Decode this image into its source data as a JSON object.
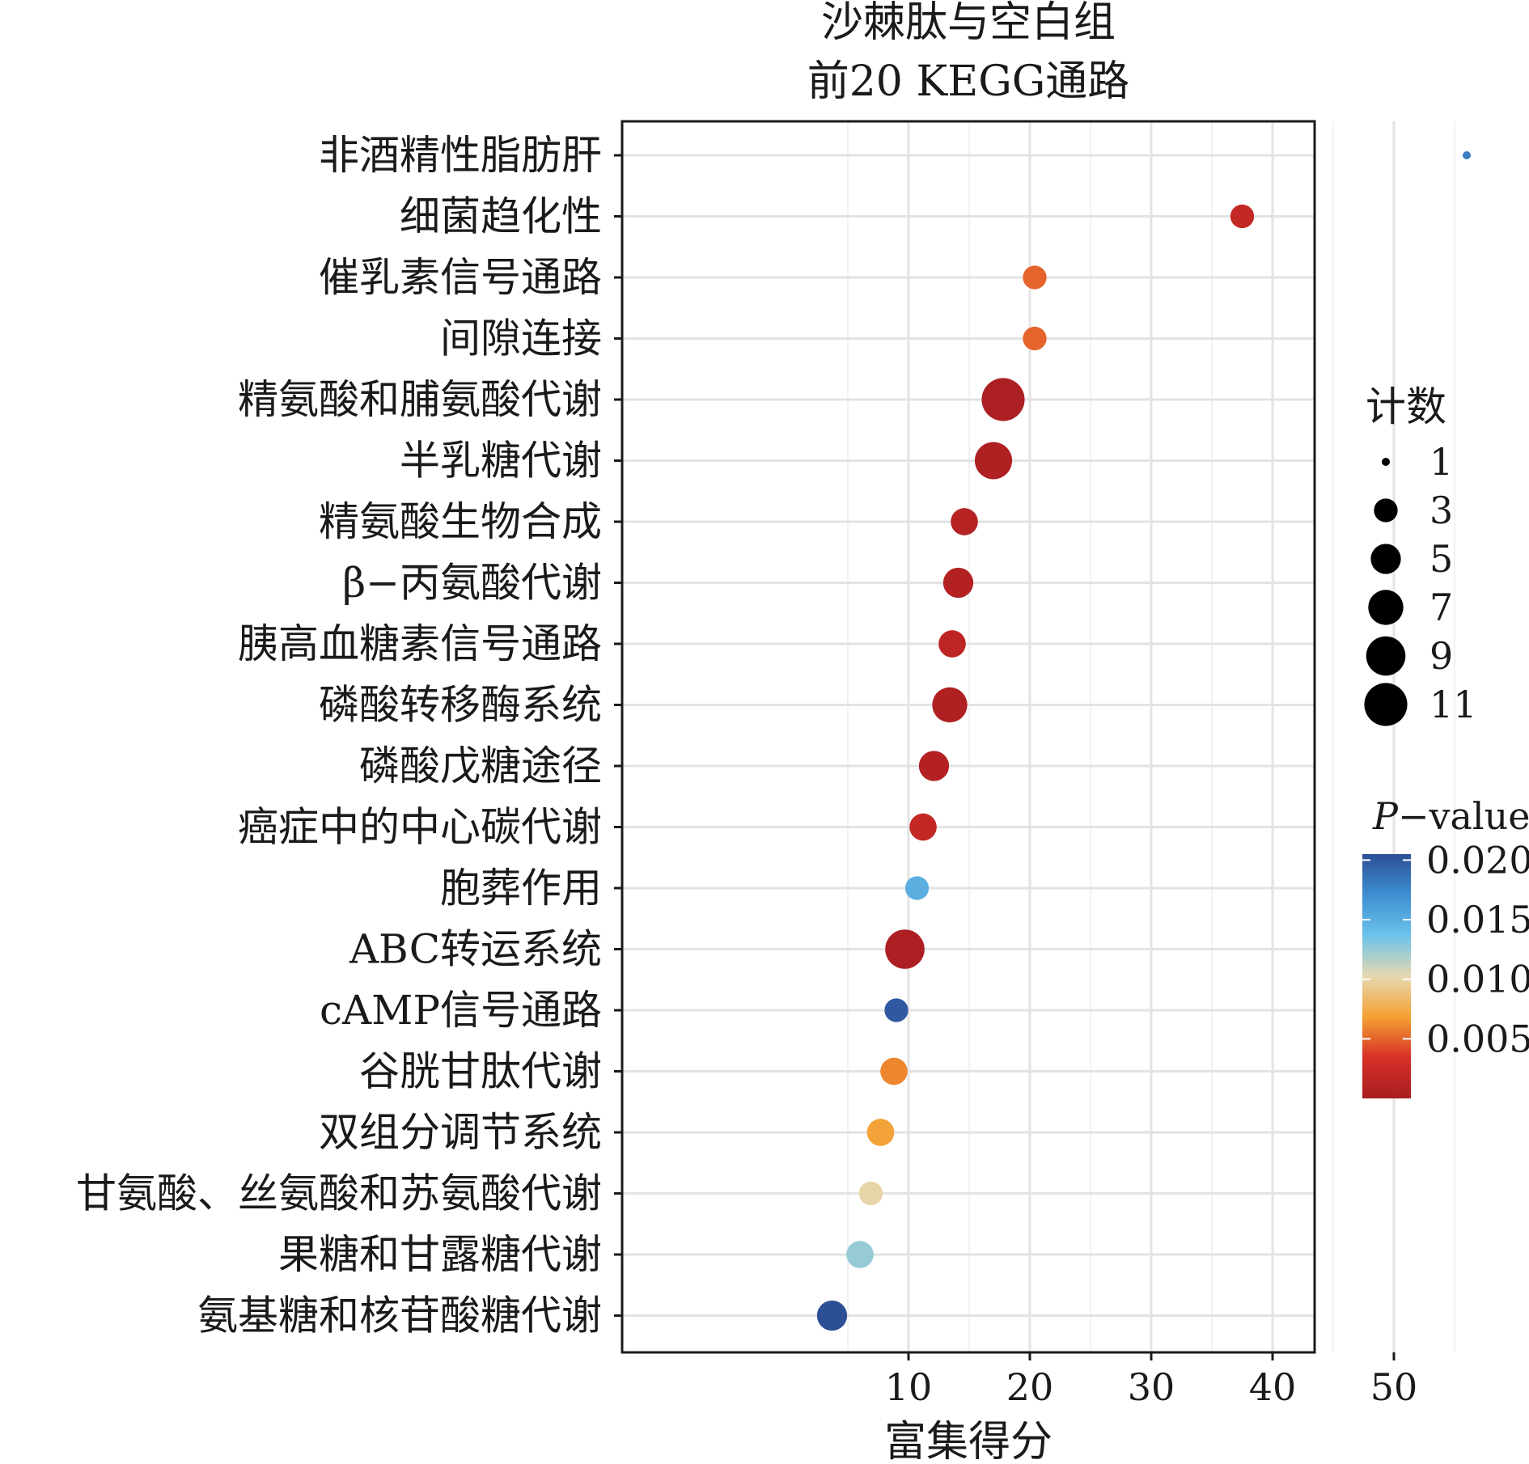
{
  "chart_data": {
    "type": "scatter",
    "title": [
      "沙棘肽与空白组",
      "前20 KEGG通路"
    ],
    "xlabel": "富集得分",
    "ylabel": "",
    "xlim": [
      2,
      59.5
    ],
    "xticks": [
      10,
      20,
      30,
      40,
      50
    ],
    "x_minor_gridlines": [
      5,
      15,
      25,
      35,
      45,
      55
    ],
    "grid": true,
    "categories": [
      "非酒精性脂肪肝",
      "细菌趋化性",
      "催乳素信号通路",
      "间隙连接",
      "精氨酸和脯氨酸代谢",
      "半乳糖代谢",
      "精氨酸生物合成",
      "β−丙氨酸代谢",
      "胰高血糖素信号通路",
      "磷酸转移酶系统",
      "磷酸戊糖途径",
      "癌症中的中心碳代谢",
      "胞葬作用",
      "ABC转运系统",
      "cAMP信号通路",
      "谷胱甘肽代谢",
      "双组分调节系统",
      "甘氨酸、丝氨酸和苏氨酸代谢",
      "果糖和甘露糖代谢",
      "氨基糖和核苷酸糖代谢"
    ],
    "points": [
      {
        "x": 56.0,
        "count": 1,
        "p": 0.018
      },
      {
        "x": 37.5,
        "count": 3,
        "p": 0.002
      },
      {
        "x": 20.4,
        "count": 3,
        "p": 0.005
      },
      {
        "x": 20.4,
        "count": 3,
        "p": 0.005
      },
      {
        "x": 17.8,
        "count": 11,
        "p": 0.0003
      },
      {
        "x": 17.0,
        "count": 8,
        "p": 0.0005
      },
      {
        "x": 14.6,
        "count": 4,
        "p": 0.001
      },
      {
        "x": 14.1,
        "count": 5,
        "p": 0.0008
      },
      {
        "x": 13.6,
        "count": 4,
        "p": 0.0015
      },
      {
        "x": 13.4,
        "count": 7,
        "p": 0.0006
      },
      {
        "x": 12.1,
        "count": 5,
        "p": 0.0008
      },
      {
        "x": 11.2,
        "count": 4,
        "p": 0.002
      },
      {
        "x": 10.7,
        "count": 3,
        "p": 0.015
      },
      {
        "x": 9.7,
        "count": 9,
        "p": 0.0004
      },
      {
        "x": 9.0,
        "count": 3,
        "p": 0.02
      },
      {
        "x": 8.8,
        "count": 4,
        "p": 0.006
      },
      {
        "x": 7.7,
        "count": 4,
        "p": 0.007
      },
      {
        "x": 6.9,
        "count": 3,
        "p": 0.01
      },
      {
        "x": 6.0,
        "count": 4,
        "p": 0.0125
      },
      {
        "x": 3.7,
        "count": 5,
        "p": 0.0205
      }
    ],
    "size_legend": {
      "title": "计数",
      "values": [
        1,
        3,
        5,
        7,
        9,
        11
      ]
    },
    "color_legend": {
      "title_italic": "P",
      "title_rest": "−value",
      "ticks": [
        "0.020",
        "0.015",
        "0.010",
        "0.005"
      ],
      "tick_values": [
        0.02,
        0.015,
        0.01,
        0.005
      ],
      "range": [
        0.0,
        0.0205
      ],
      "colors": [
        "#a81d22",
        "#d73027",
        "#f5a032",
        "#e6d8b0",
        "#6cc3ea",
        "#3d8fd1",
        "#2c4f96"
      ]
    }
  }
}
